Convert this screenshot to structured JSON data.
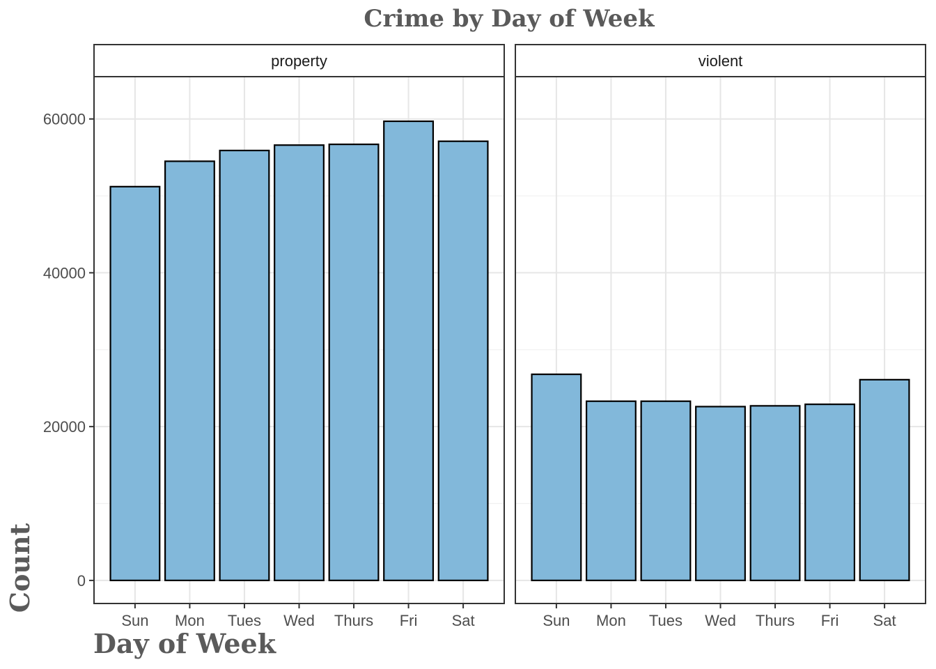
{
  "chart_data": {
    "type": "bar",
    "title": "Crime by Day of Week",
    "xlabel": "Day of Week",
    "ylabel": "Count",
    "categories": [
      "Sun",
      "Mon",
      "Tues",
      "Wed",
      "Thurs",
      "Fri",
      "Sat"
    ],
    "ylim": [
      -3000,
      65500
    ],
    "yticks": [
      0,
      20000,
      40000,
      60000
    ],
    "ytick_labels": [
      "0",
      "20000",
      "40000",
      "60000"
    ],
    "grid": true,
    "legend": "none",
    "colors": {
      "bar_fill": "#7EB6D9",
      "bar_stroke": "#000000"
    },
    "facets": [
      {
        "label": "property",
        "values": [
          51200,
          54500,
          55900,
          56600,
          56700,
          59700,
          57100
        ]
      },
      {
        "label": "violent",
        "values": [
          26800,
          23300,
          23300,
          22600,
          22700,
          22900,
          26100
        ]
      }
    ]
  }
}
